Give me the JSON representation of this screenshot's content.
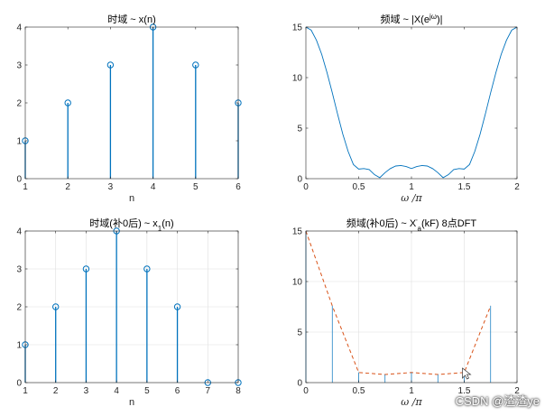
{
  "colors": {
    "stem": "#0072bd",
    "dft_line": "#d95319",
    "axis": "#262626",
    "grid": "#dfdfdf"
  },
  "watermark": "CSDN @渣渣ye",
  "chart_data": [
    {
      "id": "tl",
      "type": "stem",
      "title": "时域 ~ x(n)",
      "xlabel": "n",
      "ylabel": "",
      "x": [
        1,
        2,
        3,
        4,
        5,
        6
      ],
      "y": [
        1,
        2,
        3,
        4,
        3,
        2
      ],
      "xlim": [
        1,
        6
      ],
      "ylim": [
        0,
        4
      ],
      "xticks": [
        1,
        2,
        3,
        4,
        5,
        6
      ],
      "yticks": [
        0,
        1,
        2,
        3,
        4
      ],
      "grid": false
    },
    {
      "id": "tr",
      "type": "line",
      "title": "频域 ~ |X(e^jω)|",
      "xlabel": "ω /π",
      "ylabel": "",
      "x": [
        0,
        0.05,
        0.1,
        0.15,
        0.2,
        0.25,
        0.3,
        0.35,
        0.4,
        0.45,
        0.5,
        0.55,
        0.6,
        0.65,
        0.7,
        0.75,
        0.8,
        0.85,
        0.9,
        0.95,
        1.0,
        1.05,
        1.1,
        1.15,
        1.2,
        1.25,
        1.3,
        1.35,
        1.4,
        1.45,
        1.5,
        1.55,
        1.6,
        1.65,
        1.7,
        1.75,
        1.8,
        1.85,
        1.9,
        1.95,
        2.0
      ],
      "y": [
        15,
        14.7,
        13.7,
        12.3,
        10.5,
        8.5,
        6.4,
        4.4,
        2.7,
        1.4,
        0.95,
        1.0,
        0.9,
        0.4,
        0.1,
        0.6,
        1.0,
        1.25,
        1.3,
        1.2,
        1.0,
        1.2,
        1.3,
        1.25,
        1.0,
        0.6,
        0.1,
        0.4,
        0.9,
        1.0,
        0.95,
        1.4,
        2.7,
        4.4,
        6.4,
        8.5,
        10.5,
        12.3,
        13.7,
        14.7,
        15
      ],
      "xlim": [
        0,
        2
      ],
      "ylim": [
        0,
        15
      ],
      "xticks": [
        0,
        0.5,
        1,
        1.5,
        2
      ],
      "yticks": [
        0,
        5,
        10,
        15
      ],
      "grid": false
    },
    {
      "id": "bl",
      "type": "stem",
      "title": "时域(补0后) ~ x1(n)",
      "xlabel": "n",
      "ylabel": "",
      "x": [
        1,
        2,
        3,
        4,
        5,
        6,
        7,
        8
      ],
      "y": [
        1,
        2,
        3,
        4,
        3,
        2,
        0,
        0
      ],
      "xlim": [
        1,
        8
      ],
      "ylim": [
        0,
        4
      ],
      "xticks": [
        1,
        2,
        3,
        4,
        5,
        6,
        7,
        8
      ],
      "yticks": [
        0,
        1,
        2,
        3,
        4
      ],
      "grid": true
    },
    {
      "id": "br",
      "type": "stem-line",
      "title": "频域(补0后) ~ X'a(kF) 8点DFT",
      "xlabel": "ω /π",
      "ylabel": "",
      "x": [
        0,
        0.25,
        0.5,
        0.75,
        1.0,
        1.25,
        1.5,
        1.75
      ],
      "y": [
        15,
        7.6,
        1.0,
        0.8,
        1.0,
        0.8,
        1.0,
        7.6
      ],
      "xlim": [
        0,
        2
      ],
      "ylim": [
        0,
        15
      ],
      "xticks": [
        0,
        0.5,
        1,
        1.5,
        2
      ],
      "yticks": [
        0,
        5,
        10,
        15
      ],
      "grid": true
    }
  ]
}
